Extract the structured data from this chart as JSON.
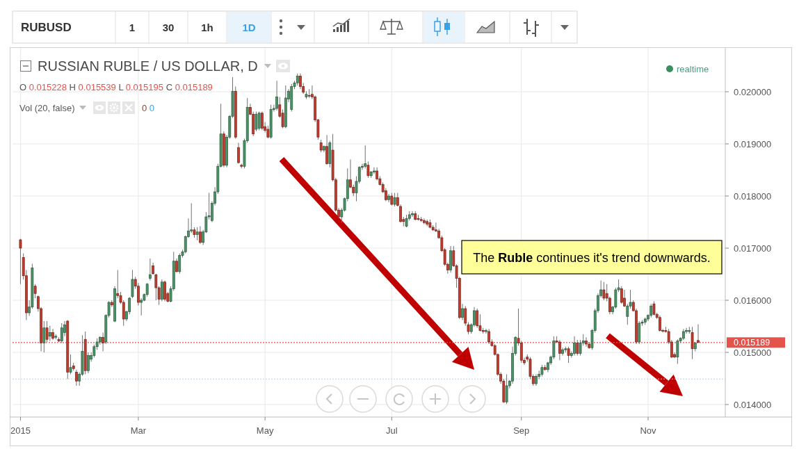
{
  "chart_data": {
    "type": "candlestick",
    "title": "RUSSIAN RUBLE / US DOLLAR, D",
    "categories": [
      "2015",
      null,
      null,
      null,
      null,
      null,
      null,
      null,
      null,
      null,
      null,
      null,
      null,
      null,
      null,
      null,
      null,
      null,
      null,
      null,
      null,
      null,
      null,
      null,
      null,
      null,
      null,
      null,
      null,
      null,
      null,
      null,
      null,
      null,
      null,
      null,
      null,
      null,
      null,
      null,
      "Mar",
      null,
      null,
      null,
      null,
      null,
      null,
      null,
      null,
      null,
      null,
      null,
      null,
      null,
      null,
      null,
      null,
      null,
      null,
      null,
      null,
      null,
      null,
      null,
      null,
      null,
      null,
      null,
      null,
      null,
      null,
      null,
      null,
      null,
      null,
      null,
      null,
      null,
      null,
      null,
      null,
      null,
      null,
      "May",
      null,
      null,
      null,
      null,
      null,
      null,
      null,
      null,
      null,
      null,
      null,
      null,
      null,
      null,
      null,
      null,
      null,
      null,
      null,
      null,
      null,
      null,
      null,
      null,
      null,
      null,
      null,
      null,
      null,
      null,
      null,
      null,
      null,
      null,
      null,
      null,
      null,
      null,
      null,
      null,
      null,
      null,
      "Jul",
      null,
      null,
      null,
      null,
      null,
      null,
      null,
      null,
      null,
      null,
      null,
      null,
      null,
      null,
      null,
      null,
      null,
      null,
      null,
      null,
      null,
      null,
      null,
      null,
      null,
      null,
      null,
      null,
      null,
      null,
      null,
      null,
      null,
      null,
      null,
      null,
      null,
      null,
      null,
      null,
      null,
      null,
      null,
      "Sep",
      null,
      null,
      null,
      null,
      null,
      null,
      null,
      null,
      null,
      null,
      null,
      null,
      null,
      null,
      null,
      null,
      null,
      null,
      null,
      null,
      null,
      null,
      null,
      null,
      null,
      null,
      null,
      null,
      null,
      null,
      null,
      null,
      null,
      null,
      null,
      null,
      null,
      null,
      null,
      null,
      null,
      null,
      "Nov",
      null,
      null,
      null,
      null,
      null,
      null,
      null,
      null,
      null,
      null,
      null,
      null,
      null,
      null,
      null,
      null,
      null
    ],
    "ohlc": [
      [
        0.01716,
        0.01718,
        0.01631,
        0.017
      ],
      [
        0.01682,
        0.0169,
        0.0164,
        0.01647
      ],
      [
        0.01647,
        0.01658,
        0.01562,
        0.01576
      ],
      [
        0.01576,
        0.016,
        0.0157,
        0.01587
      ],
      [
        0.01587,
        0.0167,
        0.01584,
        0.01662
      ],
      [
        0.01627,
        0.01631,
        0.01604,
        0.01613
      ],
      [
        0.01607,
        0.01609,
        0.01578,
        0.01584
      ],
      [
        0.01584,
        0.01587,
        0.01502,
        0.01518
      ],
      [
        0.01518,
        0.0156,
        0.015,
        0.01547
      ],
      [
        0.01547,
        0.0156,
        0.0152,
        0.01525
      ],
      [
        0.01531,
        0.01551,
        0.01522,
        0.01538
      ],
      [
        0.01538,
        0.01545,
        0.01524,
        0.01527
      ],
      [
        0.01529,
        0.01535,
        0.01525,
        0.01531
      ],
      [
        0.01525,
        0.01529,
        0.0152,
        0.01522
      ],
      [
        0.01522,
        0.01556,
        0.01518,
        0.01547
      ],
      [
        0.01538,
        0.0156,
        0.01531,
        0.01553
      ],
      [
        0.0156,
        0.01562,
        0.01449,
        0.01462
      ],
      [
        0.01462,
        0.01496,
        0.01458,
        0.01471
      ],
      [
        0.01474,
        0.0148,
        0.01465,
        0.01469
      ],
      [
        0.01462,
        0.01467,
        0.01436,
        0.01445
      ],
      [
        0.01445,
        0.01462,
        0.01436,
        0.01458
      ],
      [
        0.01458,
        0.01533,
        0.01455,
        0.01502
      ],
      [
        0.01525,
        0.0154,
        0.01458,
        0.01465
      ],
      [
        0.01465,
        0.015,
        0.0146,
        0.01494
      ],
      [
        0.01487,
        0.015,
        0.01482,
        0.01494
      ],
      [
        0.01494,
        0.01515,
        0.0149,
        0.01511
      ],
      [
        0.01511,
        0.01527,
        0.01505,
        0.0152
      ],
      [
        0.0152,
        0.01531,
        0.01515,
        0.01529
      ],
      [
        0.01529,
        0.01538,
        0.01502,
        0.01518
      ],
      [
        0.0152,
        0.01573,
        0.01516,
        0.01571
      ],
      [
        0.01571,
        0.01598,
        0.01567,
        0.01596
      ],
      [
        0.01596,
        0.016,
        0.01587,
        0.01591
      ],
      [
        0.0156,
        0.01627,
        0.01558,
        0.01622
      ],
      [
        0.01613,
        0.01658,
        0.01604,
        0.01609
      ],
      [
        0.01609,
        0.01616,
        0.01593,
        0.01596
      ],
      [
        0.01596,
        0.016,
        0.01551,
        0.01564
      ],
      [
        0.01564,
        0.0158,
        0.0156,
        0.01578
      ],
      [
        0.01578,
        0.01606,
        0.01573,
        0.01604
      ],
      [
        0.01607,
        0.01658,
        0.01604,
        0.0164
      ],
      [
        0.0164,
        0.01645,
        0.01622,
        0.01627
      ],
      [
        0.01627,
        0.01633,
        0.0159,
        0.01596
      ],
      [
        0.01596,
        0.01604,
        0.01571,
        0.016
      ],
      [
        0.016,
        0.01613,
        0.01598,
        0.01611
      ],
      [
        0.01611,
        0.01633,
        0.01607,
        0.01631
      ],
      [
        0.01642,
        0.0168,
        0.01638,
        0.01649
      ],
      [
        0.01666,
        0.01672,
        0.01649,
        0.01651
      ],
      [
        0.01649,
        0.01651,
        0.016,
        0.01624
      ],
      [
        0.01624,
        0.01627,
        0.01591,
        0.01602
      ],
      [
        0.01602,
        0.0164,
        0.01598,
        0.01635
      ],
      [
        0.01635,
        0.01638,
        0.01598,
        0.01602
      ],
      [
        0.01613,
        0.01616,
        0.01596,
        0.01598
      ],
      [
        0.01598,
        0.01627,
        0.01596,
        0.01622
      ],
      [
        0.01622,
        0.01693,
        0.01618,
        0.01675
      ],
      [
        0.01675,
        0.0168,
        0.01653,
        0.01655
      ],
      [
        0.01655,
        0.0169,
        0.01651,
        0.01686
      ],
      [
        0.01686,
        0.01697,
        0.01682,
        0.01693
      ],
      [
        0.01693,
        0.01724,
        0.0169,
        0.01722
      ],
      [
        0.01722,
        0.01757,
        0.0172,
        0.01733
      ],
      [
        0.01733,
        0.01786,
        0.01729,
        0.01735
      ],
      [
        0.01735,
        0.0174,
        0.0172,
        0.01726
      ],
      [
        0.01726,
        0.0174,
        0.01715,
        0.01731
      ],
      [
        0.01731,
        0.01742,
        0.01708,
        0.01711
      ],
      [
        0.01711,
        0.01735,
        0.01706,
        0.01731
      ],
      [
        0.01731,
        0.01769,
        0.01729,
        0.0176
      ],
      [
        0.0176,
        0.01806,
        0.01755,
        0.01762
      ],
      [
        0.01753,
        0.0179,
        0.0175,
        0.01786
      ],
      [
        0.01786,
        0.01817,
        0.01782,
        0.01808
      ],
      [
        0.01808,
        0.01862,
        0.01804,
        0.01857
      ],
      [
        0.01857,
        0.01977,
        0.01855,
        0.01919
      ],
      [
        0.01919,
        0.01924,
        0.01855,
        0.01859
      ],
      [
        0.01859,
        0.01917,
        0.01855,
        0.01913
      ],
      [
        0.01913,
        0.01955,
        0.0191,
        0.01953
      ],
      [
        0.01953,
        0.02028,
        0.0195,
        0.02001
      ],
      [
        0.02001,
        0.0201,
        0.0191,
        0.01913
      ],
      [
        0.01893,
        0.01902,
        0.01862,
        0.01864
      ],
      [
        0.01859,
        0.01862,
        0.01853,
        0.01857
      ],
      [
        0.01857,
        0.0191,
        0.01853,
        0.01906
      ],
      [
        0.01906,
        0.01988,
        0.01902,
        0.0197
      ],
      [
        0.0197,
        0.01977,
        0.01955,
        0.01957
      ],
      [
        0.01957,
        0.01962,
        0.01915,
        0.01919
      ],
      [
        0.01928,
        0.01962,
        0.01924,
        0.01957
      ],
      [
        0.0193,
        0.01962,
        0.01926,
        0.01959
      ],
      [
        0.01959,
        0.01962,
        0.01926,
        0.0193
      ],
      [
        0.01933,
        0.01942,
        0.01922,
        0.01926
      ],
      [
        0.01928,
        0.01935,
        0.01911,
        0.01913
      ],
      [
        0.01913,
        0.01975,
        0.0191,
        0.01966
      ],
      [
        0.01966,
        0.01975,
        0.01962,
        0.01968
      ],
      [
        0.01968,
        0.02021,
        0.01964,
        0.0199
      ],
      [
        0.01975,
        0.0199,
        0.0195,
        0.01953
      ],
      [
        0.01959,
        0.01966,
        0.0193,
        0.01933
      ],
      [
        0.01933,
        0.02012,
        0.0193,
        0.01988
      ],
      [
        0.01986,
        0.02005,
        0.0198,
        0.02001
      ],
      [
        0.01966,
        0.02015,
        0.01962,
        0.0201
      ],
      [
        0.0201,
        0.02021,
        0.02005,
        0.02017
      ],
      [
        0.02017,
        0.02035,
        0.02012,
        0.0203
      ],
      [
        0.0203,
        0.02035,
        0.02005,
        0.0201
      ],
      [
        0.0201,
        0.02017,
        0.01996,
        0.01999
      ],
      [
        0.0199,
        0.02001,
        0.01986,
        0.01995
      ],
      [
        0.01993,
        0.02005,
        0.01988,
        0.01992
      ],
      [
        0.01995,
        0.02012,
        0.01986,
        0.0199
      ],
      [
        0.0199,
        0.01993,
        0.01942,
        0.01946
      ],
      [
        0.01946,
        0.01948,
        0.01908,
        0.01913
      ],
      [
        0.01902,
        0.01908,
        0.01884,
        0.01888
      ],
      [
        0.01888,
        0.01897,
        0.01884,
        0.01895
      ],
      [
        0.01895,
        0.01917,
        0.0186,
        0.01862
      ],
      [
        0.01862,
        0.01906,
        0.01855,
        0.01902
      ],
      [
        0.01888,
        0.01919,
        0.01828,
        0.01831
      ],
      [
        0.01831,
        0.01835,
        0.0177,
        0.01773
      ],
      [
        0.01773,
        0.01777,
        0.01757,
        0.0176
      ],
      [
        0.0176,
        0.01777,
        0.01749,
        0.01773
      ],
      [
        0.01773,
        0.01797,
        0.0177,
        0.01795
      ],
      [
        0.01795,
        0.01853,
        0.0179,
        0.01831
      ],
      [
        0.01831,
        0.0187,
        0.01815,
        0.01817
      ],
      [
        0.01817,
        0.01822,
        0.018,
        0.01806
      ],
      [
        0.01806,
        0.01838,
        0.0179,
        0.01828
      ],
      [
        0.01828,
        0.01857,
        0.01824,
        0.01855
      ],
      [
        0.01855,
        0.01862,
        0.0185,
        0.01857
      ],
      [
        0.01857,
        0.01897,
        0.01853,
        0.01862
      ],
      [
        0.01859,
        0.01866,
        0.01835,
        0.01839
      ],
      [
        0.01839,
        0.01848,
        0.01835,
        0.01846
      ],
      [
        0.01846,
        0.01855,
        0.01842,
        0.01848
      ],
      [
        0.01848,
        0.01855,
        0.0183,
        0.01833
      ],
      [
        0.01833,
        0.01838,
        0.0182,
        0.01822
      ],
      [
        0.01822,
        0.01826,
        0.01806,
        0.01808
      ],
      [
        0.0181,
        0.01815,
        0.0179,
        0.01793
      ],
      [
        0.01793,
        0.01804,
        0.01788,
        0.018
      ],
      [
        0.018,
        0.01806,
        0.01782,
        0.01784
      ],
      [
        0.01784,
        0.01806,
        0.0178,
        0.01797
      ],
      [
        0.01797,
        0.01806,
        0.0178,
        0.01782
      ],
      [
        0.0178,
        0.01784,
        0.01749,
        0.01751
      ],
      [
        0.01755,
        0.0176,
        0.01742,
        0.01751
      ],
      [
        0.01742,
        0.01764,
        0.0174,
        0.01757
      ],
      [
        0.01757,
        0.01771,
        0.01753,
        0.01764
      ],
      [
        0.01764,
        0.01771,
        0.0176,
        0.01766
      ],
      [
        0.01766,
        0.01771,
        0.01753,
        0.01755
      ],
      [
        0.01757,
        0.01764,
        0.01753,
        0.01755
      ],
      [
        0.01755,
        0.0176,
        0.0175,
        0.01753
      ],
      [
        0.01753,
        0.01757,
        0.01746,
        0.01749
      ],
      [
        0.01751,
        0.01755,
        0.01742,
        0.01746
      ],
      [
        0.01749,
        0.01755,
        0.01738,
        0.0174
      ],
      [
        0.0174,
        0.01744,
        0.01733,
        0.01735
      ],
      [
        0.01735,
        0.01749,
        0.01731,
        0.01733
      ],
      [
        0.01733,
        0.01737,
        0.01718,
        0.0172
      ],
      [
        0.0172,
        0.01724,
        0.01693,
        0.01695
      ],
      [
        0.01697,
        0.017,
        0.01666,
        0.01669
      ],
      [
        0.01669,
        0.01672,
        0.01651,
        0.01658
      ],
      [
        0.01658,
        0.01704,
        0.01653,
        0.01695
      ],
      [
        0.01695,
        0.01704,
        0.01664,
        0.01666
      ],
      [
        0.01666,
        0.01669,
        0.01624,
        0.01642
      ],
      [
        0.01642,
        0.01645,
        0.01564,
        0.01567
      ],
      [
        0.01567,
        0.01593,
        0.01562,
        0.01584
      ],
      [
        0.01584,
        0.01589,
        0.01551,
        0.01556
      ],
      [
        0.01553,
        0.01558,
        0.01535,
        0.0154
      ],
      [
        0.0154,
        0.01556,
        0.01536,
        0.01553
      ],
      [
        0.01553,
        0.01587,
        0.01549,
        0.0158
      ],
      [
        0.0158,
        0.01584,
        0.01547,
        0.01551
      ],
      [
        0.01551,
        0.01573,
        0.0154,
        0.01542
      ],
      [
        0.01542,
        0.01547,
        0.01536,
        0.0154
      ],
      [
        0.0154,
        0.01545,
        0.01536,
        0.01542
      ],
      [
        0.0154,
        0.01545,
        0.01516,
        0.0152
      ],
      [
        0.0152,
        0.01525,
        0.01511,
        0.01513
      ],
      [
        0.01513,
        0.01516,
        0.01494,
        0.01496
      ],
      [
        0.01496,
        0.01498,
        0.01455,
        0.01458
      ],
      [
        0.01458,
        0.01462,
        0.0144,
        0.01445
      ],
      [
        0.01445,
        0.01449,
        0.01403,
        0.01405
      ],
      [
        0.01405,
        0.01458,
        0.01401,
        0.01436
      ],
      [
        0.01436,
        0.01447,
        0.01431,
        0.01445
      ],
      [
        0.01445,
        0.01511,
        0.0144,
        0.01498
      ],
      [
        0.01498,
        0.01531,
        0.01494,
        0.01529
      ],
      [
        0.01527,
        0.01584,
        0.01513,
        0.01518
      ],
      [
        0.01518,
        0.01522,
        0.0148,
        0.01485
      ],
      [
        0.01485,
        0.0149,
        0.01476,
        0.0148
      ],
      [
        0.01491,
        0.01496,
        0.01482,
        0.01487
      ],
      [
        0.01487,
        0.01491,
        0.01449,
        0.01454
      ],
      [
        0.01454,
        0.01458,
        0.01436,
        0.0144
      ],
      [
        0.0144,
        0.01458,
        0.01436,
        0.01454
      ],
      [
        0.01454,
        0.01465,
        0.01449,
        0.01458
      ],
      [
        0.01458,
        0.01476,
        0.01454,
        0.01471
      ],
      [
        0.01471,
        0.01476,
        0.01465,
        0.01467
      ],
      [
        0.01467,
        0.01482,
        0.01462,
        0.0148
      ],
      [
        0.0148,
        0.01494,
        0.01476,
        0.01491
      ],
      [
        0.01491,
        0.01531,
        0.01487,
        0.01522
      ],
      [
        0.01522,
        0.01531,
        0.01518,
        0.0152
      ],
      [
        0.0152,
        0.01524,
        0.01485,
        0.01498
      ],
      [
        0.01498,
        0.01509,
        0.01494,
        0.01505
      ],
      [
        0.01505,
        0.01511,
        0.015,
        0.01507
      ],
      [
        0.01507,
        0.01511,
        0.0148,
        0.01494
      ],
      [
        0.01494,
        0.01502,
        0.0149,
        0.01498
      ],
      [
        0.01498,
        0.01531,
        0.01494,
        0.01518
      ],
      [
        0.01518,
        0.01524,
        0.01494,
        0.01498
      ],
      [
        0.01498,
        0.01524,
        0.01494,
        0.01518
      ],
      [
        0.01518,
        0.01535,
        0.01513,
        0.01522
      ],
      [
        0.01522,
        0.01529,
        0.01511,
        0.01516
      ],
      [
        0.01516,
        0.0152,
        0.01507,
        0.01509
      ],
      [
        0.01509,
        0.01545,
        0.01505,
        0.01542
      ],
      [
        0.01542,
        0.01584,
        0.01538,
        0.0158
      ],
      [
        0.0158,
        0.01613,
        0.01576,
        0.01609
      ],
      [
        0.01609,
        0.01638,
        0.01605,
        0.0162
      ],
      [
        0.0162,
        0.01635,
        0.016,
        0.01604
      ],
      [
        0.01613,
        0.01631,
        0.01598,
        0.01604
      ],
      [
        0.01604,
        0.01607,
        0.01573,
        0.01578
      ],
      [
        0.01578,
        0.01589,
        0.01573,
        0.01587
      ],
      [
        0.01587,
        0.01624,
        0.01584,
        0.0162
      ],
      [
        0.0162,
        0.0164,
        0.01616,
        0.01624
      ],
      [
        0.01622,
        0.01627,
        0.01593,
        0.01596
      ],
      [
        0.01604,
        0.0162,
        0.01587,
        0.01589
      ],
      [
        0.01569,
        0.01593,
        0.01553,
        0.01589
      ],
      [
        0.01589,
        0.0162,
        0.01584,
        0.01596
      ],
      [
        0.01596,
        0.016,
        0.01578,
        0.0158
      ],
      [
        0.0158,
        0.01584,
        0.01516,
        0.0152
      ],
      [
        0.0152,
        0.0156,
        0.01516,
        0.01556
      ],
      [
        0.01556,
        0.01562,
        0.01551,
        0.01558
      ],
      [
        0.01558,
        0.01567,
        0.01553,
        0.01564
      ],
      [
        0.01564,
        0.01573,
        0.0156,
        0.01571
      ],
      [
        0.01571,
        0.01593,
        0.01567,
        0.01589
      ],
      [
        0.01593,
        0.01598,
        0.01571,
        0.01573
      ],
      [
        0.01573,
        0.01576,
        0.01564,
        0.01567
      ],
      [
        0.01567,
        0.01571,
        0.0154,
        0.01542
      ],
      [
        0.01542,
        0.01545,
        0.01538,
        0.01541
      ],
      [
        0.01542,
        0.01549,
        0.01538,
        0.0154
      ],
      [
        0.0154,
        0.01545,
        0.01516,
        0.0152
      ],
      [
        0.0152,
        0.01524,
        0.01489,
        0.01491
      ],
      [
        0.01496,
        0.015,
        0.01489,
        0.01491
      ],
      [
        0.01491,
        0.01525,
        0.01478,
        0.01522
      ],
      [
        0.01522,
        0.01529,
        0.01518,
        0.01527
      ],
      [
        0.01527,
        0.01545,
        0.01524,
        0.0154
      ],
      [
        0.0154,
        0.01547,
        0.01536,
        0.01542
      ],
      [
        0.0154,
        0.01549,
        0.01536,
        0.01542
      ],
      [
        0.01538,
        0.01549,
        0.01487,
        0.01507
      ],
      [
        0.01507,
        0.0152,
        0.01502,
        0.01518
      ],
      [
        0.015228,
        0.015539,
        0.015189,
        0.015189
      ]
    ],
    "colors": [
      "#c23b2c",
      "#c23b2c",
      "#c23b2c",
      "#4a9567",
      "#4a9567",
      "#c23b2c",
      "#c23b2c",
      "#c23b2c",
      "#4a9567",
      "#c23b2c",
      "#4a9567",
      "#c23b2c",
      "#4a9567",
      "#c23b2c",
      "#4a9567",
      "#4a9567",
      "#c23b2c",
      "#4a9567",
      "#c23b2c",
      "#c23b2c",
      "#4a9567",
      "#4a9567",
      "#c23b2c",
      "#4a9567",
      "#4a9567",
      "#4a9567",
      "#4a9567",
      "#4a9567",
      "#c23b2c",
      "#4a9567",
      "#4a9567",
      "#c23b2c",
      "#4a9567",
      "#c23b2c",
      "#c23b2c",
      "#c23b2c",
      "#4a9567",
      "#4a9567",
      "#4a9567",
      "#c23b2c",
      "#c23b2c",
      "#4a9567",
      "#4a9567",
      "#4a9567",
      "#4a9567",
      "#c23b2c",
      "#c23b2c",
      "#c23b2c",
      "#4a9567",
      "#c23b2c",
      "#c23b2c",
      "#4a9567",
      "#4a9567",
      "#c23b2c",
      "#4a9567",
      "#4a9567",
      "#4a9567",
      "#4a9567",
      "#4a9567",
      "#c23b2c",
      "#4a9567",
      "#c23b2c",
      "#4a9567",
      "#4a9567",
      "#4a9567",
      "#4a9567",
      "#4a9567",
      "#4a9567",
      "#4a9567",
      "#c23b2c",
      "#4a9567",
      "#4a9567",
      "#4a9567",
      "#c23b2c",
      "#c23b2c",
      "#c23b2c",
      "#4a9567",
      "#4a9567",
      "#c23b2c",
      "#c23b2c",
      "#4a9567",
      "#4a9567",
      "#c23b2c",
      "#c23b2c",
      "#c23b2c",
      "#4a9567",
      "#4a9567",
      "#4a9567",
      "#c23b2c",
      "#c23b2c",
      "#4a9567",
      "#4a9567",
      "#4a9567",
      "#4a9567",
      "#4a9567",
      "#c23b2c",
      "#c23b2c",
      "#4a9567",
      "#c23b2c",
      "#c23b2c",
      "#c23b2c",
      "#c23b2c",
      "#c23b2c",
      "#4a9567",
      "#c23b2c",
      "#4a9567",
      "#c23b2c",
      "#c23b2c",
      "#c23b2c",
      "#4a9567",
      "#4a9567",
      "#4a9567",
      "#c23b2c",
      "#c23b2c",
      "#4a9567",
      "#4a9567",
      "#4a9567",
      "#4a9567",
      "#c23b2c",
      "#4a9567",
      "#4a9567",
      "#c23b2c",
      "#c23b2c",
      "#c23b2c",
      "#c23b2c",
      "#4a9567",
      "#c23b2c",
      "#4a9567",
      "#c23b2c",
      "#c23b2c",
      "#c23b2c",
      "#4a9567",
      "#4a9567",
      "#4a9567",
      "#c23b2c",
      "#c23b2c",
      "#c23b2c",
      "#c23b2c",
      "#c23b2c",
      "#c23b2c",
      "#c23b2c",
      "#c23b2c",
      "#c23b2c",
      "#c23b2c",
      "#c23b2c",
      "#c23b2c",
      "#4a9567",
      "#c23b2c",
      "#c23b2c",
      "#c23b2c",
      "#4a9567",
      "#c23b2c",
      "#c23b2c",
      "#4a9567",
      "#4a9567",
      "#c23b2c",
      "#c23b2c",
      "#c23b2c",
      "#4a9567",
      "#c23b2c",
      "#c23b2c",
      "#c23b2c",
      "#c23b2c",
      "#c23b2c",
      "#c23b2c",
      "#4a9567",
      "#4a9567",
      "#4a9567",
      "#4a9567",
      "#c23b2c",
      "#c23b2c",
      "#c23b2c",
      "#c23b2c",
      "#c23b2c",
      "#c23b2c",
      "#4a9567",
      "#4a9567",
      "#4a9567",
      "#c23b2c",
      "#4a9567",
      "#4a9567",
      "#4a9567",
      "#c23b2c",
      "#c23b2c",
      "#4a9567",
      "#4a9567",
      "#c23b2c",
      "#4a9567",
      "#4a9567",
      "#c23b2c",
      "#4a9567",
      "#4a9567",
      "#c23b2c",
      "#c23b2c",
      "#4a9567",
      "#4a9567",
      "#4a9567",
      "#4a9567",
      "#c23b2c",
      "#c23b2c",
      "#c23b2c",
      "#4a9567",
      "#4a9567",
      "#4a9567",
      "#c23b2c",
      "#c23b2c",
      "#4a9567",
      "#4a9567",
      "#c23b2c",
      "#c23b2c",
      "#4a9567",
      "#4a9567",
      "#4a9567",
      "#4a9567",
      "#4a9567",
      "#c23b2c",
      "#c23b2c",
      "#c23b2c",
      "#c23b2c",
      "#c23b2c",
      "#c23b2c",
      "#c23b2c",
      "#c23b2c",
      "#4a9567",
      "#4a9567",
      "#4a9567",
      "#4a9567",
      "#4a9567",
      "#c23b2c",
      "#4a9567",
      "#c23b2c"
    ],
    "ylim": [
      0.01376,
      0.02084
    ],
    "yticks": [
      {
        "value": 0.014,
        "label": "0.014000"
      },
      {
        "value": 0.015,
        "label": "0.015000"
      },
      {
        "value": 0.016,
        "label": "0.016000"
      },
      {
        "value": 0.017,
        "label": "0.017000"
      },
      {
        "value": 0.018,
        "label": "0.018000"
      },
      {
        "value": 0.019,
        "label": "0.019000"
      },
      {
        "value": 0.02,
        "label": "0.020000"
      }
    ],
    "grid": true,
    "ref_lines": [
      {
        "axis": "y",
        "value": 0.015189,
        "label": "0.015189",
        "color": "#e5534b",
        "line_style": "dotted"
      },
      {
        "axis": "y",
        "value": 0.01449,
        "color": "#a9d5f2",
        "line_style": "dotted"
      }
    ],
    "annotations": [
      "The Ruble continues it's trend downwards.",
      "O 0.015228 H 0.015539 L 0.015195 C 0.015189",
      "Vol (20, false)",
      "0 0",
      "realtime",
      "RUBUSD",
      "1",
      "30",
      "1h",
      "1D"
    ]
  }
}
